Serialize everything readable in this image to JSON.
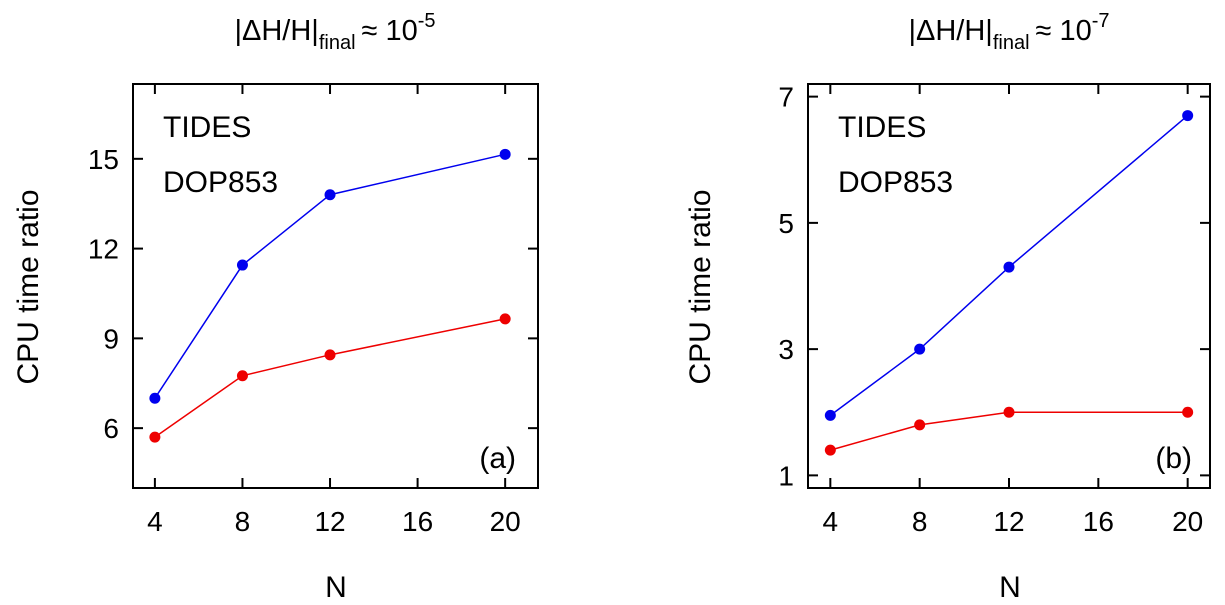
{
  "colors": {
    "tides": "#0000ee",
    "dop853": "#ee0000",
    "axis": "#000000"
  },
  "chart_data": [
    {
      "type": "line",
      "panel_tag": "(a)",
      "title": {
        "lhs": "|ΔH/H|",
        "subscript": "final",
        "approx": "≈ 10",
        "exponent": "-5"
      },
      "xlabel": "N",
      "ylabel": "CPU time ratio",
      "xlim": [
        3,
        21.5
      ],
      "ylim": [
        4,
        17.5
      ],
      "xticks": [
        4,
        8,
        12,
        16,
        20
      ],
      "yticks": [
        6,
        9,
        12,
        15
      ],
      "series": [
        {
          "name": "TIDES",
          "x": [
            4,
            8,
            12,
            20
          ],
          "y": [
            7.0,
            11.45,
            13.8,
            15.15
          ]
        },
        {
          "name": "DOP853",
          "x": [
            4,
            8,
            12,
            20
          ],
          "y": [
            5.7,
            7.75,
            8.45,
            9.65
          ]
        }
      ]
    },
    {
      "type": "line",
      "panel_tag": "(b)",
      "title": {
        "lhs": "|ΔH/H|",
        "subscript": "final",
        "approx": "≈ 10",
        "exponent": "-7"
      },
      "xlabel": "N",
      "ylabel": "CPU time ratio",
      "xlim": [
        3,
        21
      ],
      "ylim": [
        0.8,
        7.2
      ],
      "xticks": [
        4,
        8,
        12,
        16,
        20
      ],
      "yticks": [
        1,
        3,
        5,
        7
      ],
      "series": [
        {
          "name": "TIDES",
          "x": [
            4,
            8,
            12,
            20
          ],
          "y": [
            1.95,
            3.0,
            4.3,
            6.7
          ]
        },
        {
          "name": "DOP853",
          "x": [
            4,
            8,
            12,
            20
          ],
          "y": [
            1.4,
            1.8,
            2.0,
            2.0
          ]
        }
      ]
    }
  ]
}
